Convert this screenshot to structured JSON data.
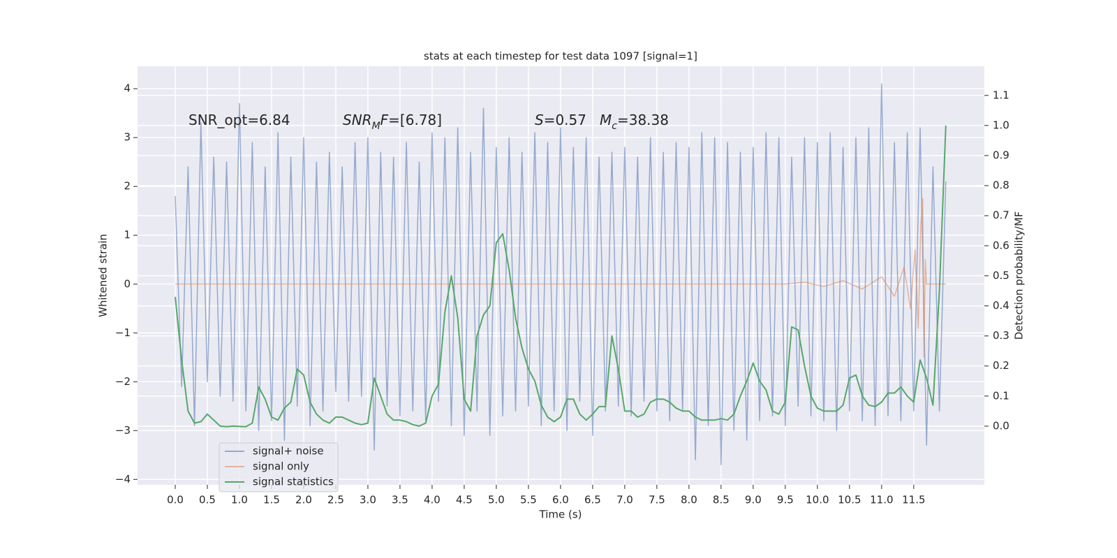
{
  "chart_data": {
    "type": "line",
    "title": "stats at each timestep for test data 1097 [signal=1]",
    "xlabel": "Time (s)",
    "ylabel": "Whitened strain",
    "y2label": "Detection probability/MF",
    "annotations": [
      [
        {
          "text": "SNR_opt=6.84"
        }
      ],
      [
        {
          "text": "SNR",
          "italic": true
        },
        {
          "text": "M",
          "italic": true,
          "sub": true
        },
        {
          "text": "F",
          "italic": true
        },
        {
          "text": "=[6.78]"
        }
      ],
      [
        {
          "text": "S",
          "italic": true
        },
        {
          "text": "=0.57"
        }
      ],
      [
        {
          "text": "M",
          "italic": true
        },
        {
          "text": "c",
          "italic": true,
          "sub": true
        },
        {
          "text": "=38.38"
        }
      ]
    ],
    "x": [
      0,
      0.1,
      0.2,
      0.3,
      0.4,
      0.5,
      0.6,
      0.7,
      0.8,
      0.9,
      1,
      1.1,
      1.2,
      1.3,
      1.4,
      1.5,
      1.6,
      1.7,
      1.8,
      1.9,
      2,
      2.1,
      2.2,
      2.3,
      2.4,
      2.5,
      2.6,
      2.7,
      2.8,
      2.9,
      3,
      3.1,
      3.2,
      3.3,
      3.4,
      3.5,
      3.6,
      3.7,
      3.8,
      3.9,
      4,
      4.1,
      4.2,
      4.3,
      4.4,
      4.5,
      4.6,
      4.7,
      4.8,
      4.9,
      5,
      5.1,
      5.2,
      5.3,
      5.4,
      5.5,
      5.6,
      5.7,
      5.8,
      5.9,
      6,
      6.1,
      6.2,
      6.3,
      6.4,
      6.5,
      6.6,
      6.7,
      6.8,
      6.9,
      7,
      7.1,
      7.2,
      7.3,
      7.4,
      7.5,
      7.6,
      7.7,
      7.8,
      7.9,
      8,
      8.1,
      8.2,
      8.3,
      8.4,
      8.5,
      8.6,
      8.7,
      8.8,
      8.9,
      9,
      9.1,
      9.2,
      9.3,
      9.4,
      9.5,
      9.6,
      9.7,
      9.8,
      9.9,
      10,
      10.1,
      10.2,
      10.3,
      10.4,
      10.5,
      10.6,
      10.7,
      10.8,
      10.9,
      11,
      11.1,
      11.2,
      11.3,
      11.4,
      11.5,
      11.6,
      11.7,
      11.8,
      11.9,
      12
    ],
    "series": [
      {
        "name": "signal+ noise",
        "color": "#4c72b0",
        "values": [
          1.8,
          -2.1,
          2.4,
          -2.9,
          3.3,
          -2.0,
          2.6,
          -2.3,
          2.5,
          -2.4,
          3.7,
          -2.6,
          2.9,
          -3.0,
          2.4,
          -2.8,
          3.1,
          -3.2,
          2.6,
          -2.5,
          3.0,
          -2.9,
          2.5,
          -2.6,
          2.7,
          -2.2,
          2.4,
          -2.4,
          2.9,
          -2.3,
          3.0,
          -3.4,
          2.7,
          -2.5,
          2.6,
          -2.7,
          2.9,
          -2.6,
          2.5,
          -2.8,
          3.1,
          -2.4,
          3.0,
          -2.9,
          3.2,
          -3.1,
          2.7,
          -2.6,
          3.6,
          -3.1,
          2.8,
          -2.7,
          3.0,
          -2.6,
          2.7,
          -2.5,
          3.1,
          -2.9,
          2.9,
          -2.6,
          3.2,
          -3.0,
          2.8,
          -2.4,
          3.0,
          -3.1,
          2.6,
          -2.6,
          2.7,
          -2.5,
          2.8,
          -2.7,
          2.6,
          -2.4,
          3.0,
          -2.6,
          2.7,
          -2.8,
          2.9,
          -2.6,
          2.8,
          -3.6,
          3.1,
          -2.9,
          3.0,
          -3.7,
          2.9,
          -3.0,
          2.7,
          -3.2,
          2.8,
          -2.8,
          3.1,
          -2.7,
          3.0,
          -2.9,
          2.6,
          -2.5,
          3.0,
          -2.7,
          2.9,
          -2.8,
          3.1,
          -3.0,
          2.8,
          -2.6,
          3.0,
          -2.8,
          3.2,
          -2.9,
          4.1,
          -2.7,
          2.9,
          -2.8,
          3.1,
          -2.6,
          3.2,
          -3.3,
          2.4,
          -2.6,
          2.1
        ]
      },
      {
        "name": "signal only",
        "color": "#dd8452",
        "x": [
          0,
          9.5,
          9.8,
          10.1,
          10.4,
          10.7,
          11.0,
          11.2,
          11.35,
          11.45,
          11.52,
          11.57,
          11.61,
          11.64,
          11.66,
          11.68,
          11.7,
          12.0
        ],
        "values": [
          0,
          0,
          0.04,
          -0.05,
          0.07,
          -0.1,
          0.15,
          -0.25,
          0.35,
          -0.5,
          0.7,
          -0.9,
          1.2,
          1.75,
          -1.5,
          0.5,
          0,
          0
        ]
      },
      {
        "name": "signal statistics",
        "color": "#55a868",
        "axis": "y2",
        "values": [
          0.43,
          0.22,
          0.05,
          0.01,
          0.015,
          0.04,
          0.02,
          0.0,
          -0.002,
          0.0,
          -0.001,
          -0.002,
          0.01,
          0.13,
          0.09,
          0.03,
          0.02,
          0.06,
          0.08,
          0.19,
          0.17,
          0.08,
          0.04,
          0.02,
          0.01,
          0.03,
          0.03,
          0.02,
          0.01,
          0.005,
          0.01,
          0.16,
          0.1,
          0.04,
          0.02,
          0.02,
          0.015,
          0.005,
          0.0,
          0.01,
          0.1,
          0.14,
          0.38,
          0.5,
          0.36,
          0.09,
          0.05,
          0.3,
          0.37,
          0.4,
          0.61,
          0.64,
          0.52,
          0.36,
          0.26,
          0.19,
          0.15,
          0.07,
          0.03,
          0.015,
          0.03,
          0.09,
          0.09,
          0.04,
          0.02,
          0.04,
          0.065,
          0.065,
          0.3,
          0.19,
          0.05,
          0.05,
          0.03,
          0.04,
          0.08,
          0.09,
          0.09,
          0.08,
          0.06,
          0.05,
          0.05,
          0.03,
          0.02,
          0.02,
          0.02,
          0.025,
          0.02,
          0.04,
          0.1,
          0.15,
          0.21,
          0.15,
          0.12,
          0.05,
          0.04,
          0.08,
          0.33,
          0.32,
          0.2,
          0.1,
          0.06,
          0.05,
          0.05,
          0.05,
          0.07,
          0.16,
          0.17,
          0.1,
          0.07,
          0.065,
          0.08,
          0.11,
          0.11,
          0.13,
          0.1,
          0.08,
          0.22,
          0.16,
          0.07,
          0.45,
          1.0
        ]
      }
    ],
    "xlim": [
      -0.587,
      12.6
    ],
    "ylim": [
      -4.11,
      4.46
    ],
    "y2lim": [
      -0.195,
      1.197
    ],
    "xticks": [
      {
        "value": 0,
        "label": "0.0"
      },
      0.5,
      {
        "value": 1,
        "label": "1.0"
      },
      1.5,
      {
        "value": 2,
        "label": "2.0"
      },
      2.5,
      {
        "value": 3,
        "label": "3.0"
      },
      3.5,
      {
        "value": 4,
        "label": "4.0"
      },
      4.5,
      {
        "value": 5,
        "label": "5.0"
      },
      5.5,
      {
        "value": 6,
        "label": "6.0"
      },
      6.5,
      {
        "value": 7,
        "label": "7.0"
      },
      7.5,
      {
        "value": 8,
        "label": "8.0"
      },
      8.5,
      {
        "value": 9,
        "label": "9.0"
      },
      9.5,
      {
        "value": 10,
        "label": "10.0"
      },
      10.5,
      {
        "value": 11,
        "label": "11.0"
      },
      11.5
    ],
    "yticks": [
      {
        "value": -4,
        "label": "−4"
      },
      {
        "value": -3,
        "label": "−3"
      },
      {
        "value": -2,
        "label": "−2"
      },
      {
        "value": -1,
        "label": "−1"
      },
      0,
      1,
      2,
      3,
      4
    ],
    "y2ticks": [
      {
        "value": 0,
        "label": "0.0"
      },
      0.1,
      0.2,
      0.3,
      0.4,
      0.5,
      0.6,
      0.7,
      0.8,
      0.9,
      {
        "value": 1,
        "label": "1.0"
      },
      1.1
    ],
    "grid": true,
    "legend": "lower left"
  }
}
